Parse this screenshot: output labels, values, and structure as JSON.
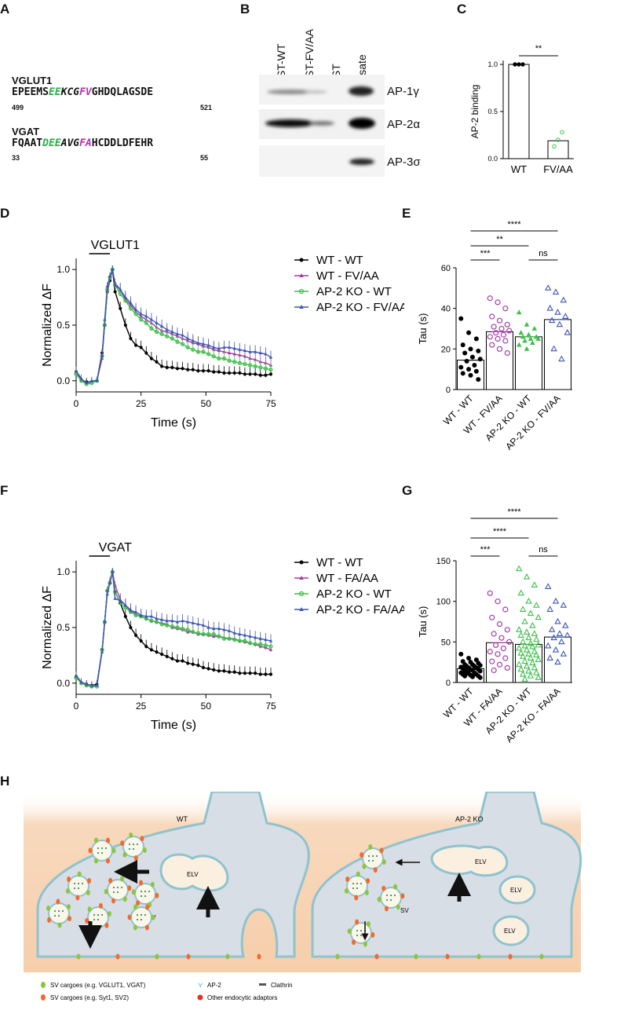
{
  "panels": {
    "A": "A",
    "B": "B",
    "C": "C",
    "D": "D",
    "E": "E",
    "F": "F",
    "G": "G",
    "H": "H"
  },
  "panelA": {
    "vglut1": {
      "name": "VGLUT1",
      "seq_pre": "EPEEMS",
      "seq_green": "EE",
      "seq_mid": "KCG",
      "seq_mag": "FV",
      "seq_post": "GHDQLAGSDE",
      "start": "499",
      "end": "521"
    },
    "vgat": {
      "name": "VGAT",
      "seq_pre": "FQAAT",
      "seq_green": "DEE",
      "seq_mid": "AVG",
      "seq_mag": "FA",
      "seq_post": "HCDDLDFEHR",
      "start": "33",
      "end": "55"
    }
  },
  "panelB": {
    "lanes": [
      "GST-WT",
      "GST-FV/AA",
      "GST",
      "Lysate"
    ],
    "blots": [
      "AP-1γ",
      "AP-2α",
      "AP-3σ"
    ]
  },
  "colors": {
    "wt_wt": "#000000",
    "wt_mut": "#a33fa8",
    "ko_wt": "#3fbf4a",
    "ko_mut": "#3f56b4"
  },
  "chart_data": [
    {
      "id": "C",
      "type": "bar",
      "ylabel": "AP-2 binding",
      "categories": [
        "WT",
        "FV/AA"
      ],
      "values": [
        1.0,
        0.19
      ],
      "ylim": [
        0,
        1.0
      ],
      "yticks": [
        "0.0",
        "0.5",
        "1.0"
      ],
      "points": [
        [
          1.0,
          1.0,
          1.0
        ],
        [
          0.13,
          0.2,
          0.28
        ]
      ],
      "significance": [
        {
          "label": "**",
          "pair": [
            "WT",
            "FV/AA"
          ]
        }
      ]
    },
    {
      "id": "D",
      "type": "line",
      "title": "VGLUT1",
      "xlabel": "Time  (s)",
      "ylabel": "Normalized ΔF",
      "xlim": [
        0,
        75
      ],
      "ylim": [
        -0.1,
        1.1
      ],
      "xticks": [
        "0",
        "25",
        "50",
        "75"
      ],
      "yticks": [
        "0.0",
        "0.5",
        "1.0"
      ],
      "x": [
        0,
        2,
        4,
        6,
        8,
        10,
        11,
        12,
        13,
        14,
        15,
        17,
        19,
        21,
        23,
        25,
        27,
        29,
        31,
        33,
        35,
        37,
        39,
        41,
        43,
        45,
        47,
        49,
        51,
        53,
        55,
        57,
        59,
        61,
        63,
        65,
        67,
        69,
        71,
        73,
        75
      ],
      "series": [
        {
          "name": "WT - WT",
          "values": [
            0.08,
            0.0,
            -0.01,
            -0.01,
            0.0,
            0.25,
            0.5,
            0.8,
            0.9,
            1.0,
            0.8,
            0.65,
            0.5,
            0.38,
            0.32,
            0.3,
            0.25,
            0.2,
            0.17,
            0.13,
            0.12,
            0.12,
            0.11,
            0.11,
            0.1,
            0.1,
            0.09,
            0.09,
            0.09,
            0.08,
            0.08,
            0.07,
            0.07,
            0.07,
            0.07,
            0.06,
            0.06,
            0.06,
            0.05,
            0.05,
            0.06
          ]
        },
        {
          "name": "WT - FV/AA",
          "values": [
            0.07,
            0.0,
            -0.02,
            -0.01,
            0.0,
            0.2,
            0.5,
            0.8,
            0.92,
            1.0,
            0.88,
            0.82,
            0.73,
            0.68,
            0.62,
            0.58,
            0.55,
            0.52,
            0.48,
            0.45,
            0.44,
            0.42,
            0.4,
            0.38,
            0.36,
            0.34,
            0.33,
            0.31,
            0.3,
            0.28,
            0.27,
            0.26,
            0.25,
            0.24,
            0.23,
            0.22,
            0.2,
            0.19,
            0.17,
            0.16,
            0.14
          ]
        },
        {
          "name": "AP-2 KO - WT",
          "values": [
            0.06,
            0.0,
            -0.03,
            -0.02,
            0.0,
            0.22,
            0.5,
            0.82,
            0.93,
            1.0,
            0.86,
            0.78,
            0.72,
            0.65,
            0.6,
            0.55,
            0.52,
            0.47,
            0.44,
            0.42,
            0.4,
            0.38,
            0.35,
            0.33,
            0.3,
            0.28,
            0.26,
            0.26,
            0.24,
            0.22,
            0.2,
            0.2,
            0.18,
            0.17,
            0.16,
            0.15,
            0.14,
            0.13,
            0.12,
            0.11,
            0.1
          ]
        },
        {
          "name": "AP-2 KO - FV/AA",
          "values": [
            0.09,
            0.02,
            -0.02,
            0.0,
            0.0,
            0.23,
            0.55,
            0.85,
            0.94,
            1.0,
            0.86,
            0.82,
            0.75,
            0.7,
            0.64,
            0.6,
            0.58,
            0.55,
            0.52,
            0.49,
            0.46,
            0.44,
            0.42,
            0.41,
            0.38,
            0.36,
            0.34,
            0.33,
            0.32,
            0.3,
            0.29,
            0.3,
            0.3,
            0.29,
            0.28,
            0.27,
            0.26,
            0.26,
            0.25,
            0.24,
            0.21
          ]
        }
      ],
      "legend": [
        "WT - WT",
        "WT - FV/AA",
        "AP-2 KO - WT",
        "AP-2 KO - FV/AA"
      ]
    },
    {
      "id": "E",
      "type": "bar",
      "ylabel": "Tau (s)",
      "ylim": [
        0,
        60
      ],
      "yticks": [
        "0",
        "20",
        "40",
        "60"
      ],
      "categories": [
        "WT - WT",
        "WT - FV/AA",
        "AP-2 KO - WT",
        "AP-2 KO - FV/AA"
      ],
      "values": [
        14.5,
        28.5,
        26.0,
        34.5
      ],
      "points": [
        [
          35,
          28,
          25,
          22,
          20,
          19,
          18,
          16,
          15,
          14,
          12,
          11,
          10,
          9,
          8,
          7,
          5
        ],
        [
          45,
          43,
          40,
          36,
          34,
          32,
          31,
          30,
          29,
          28,
          27,
          26,
          25,
          24,
          22,
          20,
          18
        ],
        [
          38,
          32,
          30,
          28,
          27,
          26,
          26,
          25,
          25,
          24,
          23,
          22,
          20
        ],
        [
          50,
          48,
          44,
          40,
          38,
          36,
          34,
          32,
          28,
          20,
          15
        ]
      ],
      "significance": [
        {
          "label": "****",
          "pair": [
            "WT - WT",
            "AP-2 KO - FV/AA"
          ]
        },
        {
          "label": "**",
          "pair": [
            "WT - WT",
            "AP-2 KO - WT"
          ]
        },
        {
          "label": "***",
          "pair": [
            "WT - WT",
            "WT - FV/AA"
          ]
        },
        {
          "label": "ns",
          "pair": [
            "AP-2 KO - WT",
            "AP-2 KO - FV/AA"
          ]
        }
      ]
    },
    {
      "id": "F",
      "type": "line",
      "title": "VGAT",
      "xlabel": "Time  (s)",
      "ylabel": "Normalized ΔF",
      "xlim": [
        0,
        75
      ],
      "ylim": [
        -0.1,
        1.1
      ],
      "xticks": [
        "0",
        "25",
        "50",
        "75"
      ],
      "yticks": [
        "0.0",
        "0.5",
        "1.0"
      ],
      "x": [
        0,
        2,
        4,
        6,
        8,
        10,
        11,
        12,
        13,
        14,
        15,
        17,
        19,
        21,
        23,
        25,
        27,
        29,
        31,
        33,
        35,
        37,
        39,
        41,
        43,
        45,
        47,
        49,
        51,
        53,
        55,
        57,
        59,
        61,
        63,
        65,
        67,
        69,
        71,
        73,
        75
      ],
      "series": [
        {
          "name": "WT - WT",
          "values": [
            0.06,
            0.0,
            -0.01,
            -0.02,
            -0.01,
            0.3,
            0.55,
            0.83,
            0.9,
            1.0,
            0.82,
            0.72,
            0.6,
            0.5,
            0.43,
            0.38,
            0.33,
            0.3,
            0.28,
            0.26,
            0.24,
            0.22,
            0.2,
            0.2,
            0.18,
            0.17,
            0.16,
            0.14,
            0.13,
            0.12,
            0.11,
            0.11,
            0.1,
            0.1,
            0.09,
            0.09,
            0.09,
            0.09,
            0.08,
            0.08,
            0.08
          ]
        },
        {
          "name": "WT - FA/AA",
          "values": [
            0.05,
            0.0,
            -0.02,
            -0.03,
            -0.02,
            0.3,
            0.55,
            0.83,
            0.92,
            1.0,
            0.88,
            0.75,
            0.7,
            0.66,
            0.62,
            0.6,
            0.58,
            0.56,
            0.55,
            0.54,
            0.53,
            0.5,
            0.49,
            0.48,
            0.46,
            0.46,
            0.44,
            0.44,
            0.43,
            0.42,
            0.42,
            0.41,
            0.4,
            0.4,
            0.38,
            0.37,
            0.36,
            0.35,
            0.33,
            0.32,
            0.3
          ]
        },
        {
          "name": "AP-2 KO - WT",
          "values": [
            0.05,
            0.0,
            -0.02,
            -0.03,
            -0.03,
            0.3,
            0.55,
            0.83,
            0.9,
            1.0,
            0.82,
            0.72,
            0.68,
            0.64,
            0.61,
            0.6,
            0.58,
            0.56,
            0.55,
            0.53,
            0.52,
            0.51,
            0.5,
            0.49,
            0.48,
            0.46,
            0.45,
            0.44,
            0.44,
            0.44,
            0.42,
            0.4,
            0.4,
            0.39,
            0.38,
            0.38,
            0.36,
            0.35,
            0.35,
            0.34,
            0.33
          ]
        },
        {
          "name": "AP-2 KO - FA/AA",
          "values": [
            0.07,
            0.01,
            -0.01,
            -0.02,
            -0.02,
            0.28,
            0.55,
            0.8,
            0.9,
            1.0,
            0.76,
            0.74,
            0.7,
            0.65,
            0.64,
            0.61,
            0.6,
            0.6,
            0.58,
            0.57,
            0.56,
            0.56,
            0.55,
            0.56,
            0.55,
            0.54,
            0.53,
            0.52,
            0.5,
            0.49,
            0.49,
            0.48,
            0.47,
            0.45,
            0.44,
            0.43,
            0.42,
            0.41,
            0.4,
            0.39,
            0.38
          ]
        }
      ],
      "legend": [
        "WT - WT",
        "WT - FA/AA",
        "AP-2 KO - WT",
        "AP-2 KO - FA/AA"
      ]
    },
    {
      "id": "G",
      "type": "bar",
      "ylabel": "Tau (s)",
      "ylim": [
        0,
        150
      ],
      "yticks": [
        "0",
        "50",
        "100",
        "150"
      ],
      "categories": [
        "WT - WT",
        "WT - FA/AA",
        "AP-2 KO - WT",
        "AP-2 KO - FA/AA"
      ],
      "values": [
        17,
        49,
        47,
        56
      ],
      "points": [
        [
          35,
          30,
          28,
          26,
          25,
          24,
          22,
          22,
          21,
          20,
          20,
          19,
          18,
          18,
          17,
          16,
          16,
          15,
          15,
          14,
          13,
          12,
          12,
          11,
          10,
          10,
          9,
          8,
          8,
          7,
          6
        ],
        [
          110,
          100,
          90,
          80,
          72,
          65,
          60,
          55,
          50,
          46,
          42,
          38,
          35,
          30,
          26,
          22,
          18,
          15
        ],
        [
          140,
          130,
          120,
          110,
          100,
          95,
          90,
          85,
          80,
          75,
          70,
          65,
          62,
          60,
          58,
          55,
          53,
          50,
          48,
          46,
          45,
          44,
          42,
          40,
          38,
          36,
          35,
          34,
          32,
          30,
          28,
          26,
          24,
          22,
          20,
          18,
          16,
          14,
          12,
          10,
          8,
          6,
          4
        ],
        [
          118,
          100,
          95,
          90,
          75,
          70,
          65,
          60,
          58,
          55,
          50,
          45,
          40,
          35,
          30,
          25
        ]
      ],
      "significance": [
        {
          "label": "****",
          "pair": [
            "WT - WT",
            "AP-2 KO - FA/AA"
          ]
        },
        {
          "label": "****",
          "pair": [
            "WT - WT",
            "AP-2 KO - WT"
          ]
        },
        {
          "label": "***",
          "pair": [
            "WT - WT",
            "WT - FA/AA"
          ]
        },
        {
          "label": "ns",
          "pair": [
            "AP-2 KO - WT",
            "AP-2 KO - FA/AA"
          ]
        }
      ]
    }
  ],
  "panelH": {
    "wt_title": "WT",
    "ko_title": "AP-2 KO",
    "elv": "ELV",
    "sv": "SV",
    "legend": [
      "SV cargoes (e.g. VGLUT1, VGAT)",
      "SV cargoes (e.g. Syt1, SV2)",
      "AP-2",
      "Clathrin",
      "Other endocytic adaptors"
    ]
  }
}
